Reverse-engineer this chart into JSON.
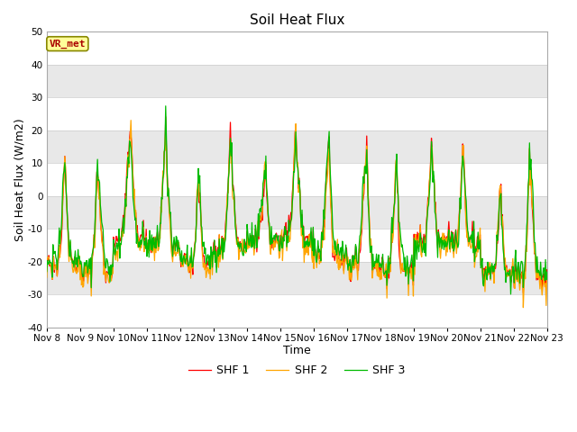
{
  "title": "Soil Heat Flux",
  "xlabel": "Time",
  "ylabel": "Soil Heat Flux (W/m2)",
  "ylim": [
    -40,
    50
  ],
  "yticks": [
    -40,
    -30,
    -20,
    -10,
    0,
    10,
    20,
    30,
    40,
    50
  ],
  "series_labels": [
    "SHF 1",
    "SHF 2",
    "SHF 3"
  ],
  "series_colors": [
    "#ff0000",
    "#ffa500",
    "#00bb00"
  ],
  "vr_met_label": "VR_met",
  "vr_met_color": "#aa0000",
  "vr_met_bg": "#ffff99",
  "vr_met_edge": "#888800",
  "background_color": "#ffffff",
  "band_color_light": "#e8e8e8",
  "band_color_white": "#ffffff",
  "n_days": 15,
  "start_day": 8,
  "pts_per_day": 48,
  "legend_fontsize": 9,
  "title_fontsize": 11,
  "axis_label_fontsize": 9,
  "tick_fontsize": 7.5,
  "linewidth": 0.9
}
